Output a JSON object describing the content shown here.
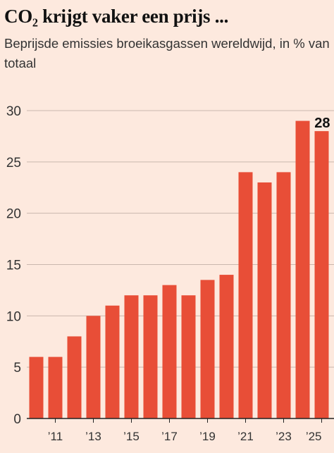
{
  "header": {
    "title": "CO₂ krijgt vaker een prijs ...",
    "subtitle": "Beprijsde emissies broeikasgassen wereldwijd, in % van totaal"
  },
  "chart_data": {
    "type": "bar",
    "title": "CO₂ krijgt vaker een prijs ...",
    "subtitle": "Beprijsde emissies broeikasgassen wereldwijd, in % van totaal",
    "xlabel": "",
    "ylabel": "",
    "categories": [
      "2010",
      "2011",
      "2012",
      "2013",
      "2014",
      "2015",
      "2016",
      "2017",
      "2018",
      "2019",
      "2020",
      "2021",
      "2022",
      "2023",
      "2024",
      "2025"
    ],
    "x_tick_labels": [
      "",
      "’11",
      "",
      "’13",
      "",
      "’15",
      "",
      "’17",
      "",
      "’19",
      "",
      "’21",
      "",
      "’23",
      "",
      "’25"
    ],
    "values": [
      6,
      6,
      8,
      10,
      11,
      12,
      12,
      13,
      12,
      13.5,
      14,
      24,
      23,
      24,
      29,
      28
    ],
    "ylim": [
      0,
      30
    ],
    "yticks": [
      0,
      5,
      10,
      15,
      20,
      25,
      30
    ],
    "grid": true,
    "data_labels": [
      {
        "category": "2025",
        "text": "28"
      }
    ],
    "colors": {
      "bar": "#e84e37",
      "background": "#fde9de",
      "grid": "#c9b7ad",
      "axis": "#222222"
    }
  }
}
